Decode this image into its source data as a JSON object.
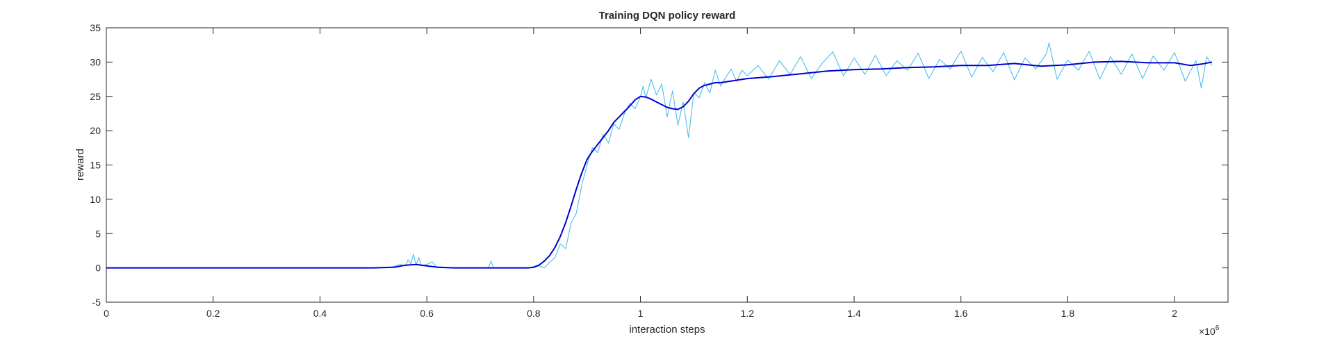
{
  "figure": {
    "title": "Training DQN policy reward",
    "xlabel": "interaction steps",
    "ylabel": "reward",
    "x_multiplier": {
      "base": "×10",
      "exponent": "6"
    }
  },
  "chart_data": {
    "type": "line",
    "title": "Training DQN policy reward",
    "xlabel": "interaction steps",
    "ylabel": "reward",
    "x_scale_label": "×10^6",
    "xlim": [
      0,
      2.1
    ],
    "ylim": [
      -5,
      35
    ],
    "xticks": [
      0,
      0.2,
      0.4,
      0.6,
      0.8,
      1,
      1.2,
      1.4,
      1.6,
      1.8,
      2
    ],
    "xtick_labels": [
      "0",
      "0.2",
      "0.4",
      "0.6",
      "0.8",
      "1",
      "1.2",
      "1.4",
      "1.6",
      "1.8",
      "2"
    ],
    "yticks": [
      -5,
      0,
      5,
      10,
      15,
      20,
      25,
      30,
      35
    ],
    "ytick_labels": [
      "-5",
      "0",
      "5",
      "10",
      "15",
      "20",
      "25",
      "30",
      "35"
    ],
    "grid": false,
    "legend": "none",
    "series": [
      {
        "color": "#4DBEEE",
        "style": "raw-noisy",
        "x": [
          0,
          0.1,
          0.2,
          0.3,
          0.4,
          0.5,
          0.53,
          0.55,
          0.56,
          0.565,
          0.57,
          0.575,
          0.58,
          0.585,
          0.59,
          0.6,
          0.61,
          0.62,
          0.65,
          0.7,
          0.715,
          0.72,
          0.725,
          0.75,
          0.78,
          0.8,
          0.81,
          0.82,
          0.83,
          0.84,
          0.85,
          0.86,
          0.87,
          0.88,
          0.89,
          0.9,
          0.91,
          0.92,
          0.93,
          0.94,
          0.95,
          0.96,
          0.97,
          0.98,
          0.99,
          1.0,
          1.005,
          1.01,
          1.02,
          1.03,
          1.04,
          1.05,
          1.06,
          1.07,
          1.08,
          1.09,
          1.1,
          1.11,
          1.12,
          1.13,
          1.14,
          1.15,
          1.16,
          1.17,
          1.18,
          1.19,
          1.2,
          1.22,
          1.24,
          1.26,
          1.28,
          1.3,
          1.32,
          1.34,
          1.36,
          1.38,
          1.4,
          1.42,
          1.44,
          1.46,
          1.48,
          1.5,
          1.52,
          1.54,
          1.56,
          1.58,
          1.6,
          1.62,
          1.64,
          1.66,
          1.68,
          1.7,
          1.72,
          1.74,
          1.76,
          1.765,
          1.78,
          1.8,
          1.82,
          1.84,
          1.86,
          1.88,
          1.9,
          1.92,
          1.94,
          1.96,
          1.98,
          2.0,
          2.02,
          2.04,
          2.05,
          2.06,
          2.07
        ],
        "values": [
          0,
          0,
          0,
          0,
          0,
          0,
          0,
          0.5,
          0.3,
          1.2,
          0.6,
          2.0,
          0.4,
          1.5,
          0.3,
          0.5,
          0.9,
          0,
          0,
          0,
          0,
          1.0,
          0,
          0,
          0,
          0,
          0.3,
          0,
          0.8,
          1.5,
          3.5,
          2.8,
          6.5,
          8.0,
          12.0,
          15.0,
          17.5,
          16.8,
          19.5,
          18.2,
          21.0,
          20.2,
          22.5,
          24.0,
          23.2,
          25.0,
          26.5,
          24.8,
          27.5,
          25.2,
          26.8,
          22.0,
          25.8,
          20.8,
          24.2,
          19.0,
          25.5,
          24.8,
          27.0,
          25.5,
          28.8,
          26.5,
          27.8,
          29.0,
          27.2,
          28.8,
          28.0,
          29.5,
          27.5,
          30.2,
          28.2,
          30.8,
          27.6,
          29.8,
          31.5,
          28.0,
          30.6,
          28.2,
          31.0,
          28.0,
          30.2,
          28.8,
          31.3,
          27.6,
          30.4,
          29.0,
          31.6,
          27.8,
          30.7,
          28.6,
          31.4,
          27.4,
          30.6,
          29.0,
          31.2,
          32.8,
          27.5,
          30.3,
          28.8,
          31.6,
          27.5,
          30.8,
          28.2,
          31.2,
          27.6,
          30.9,
          28.8,
          31.4,
          27.2,
          30.2,
          26.2,
          30.8,
          29.5
        ]
      },
      {
        "color": "#0000CD",
        "style": "smoothed",
        "x": [
          0,
          0.2,
          0.4,
          0.5,
          0.54,
          0.56,
          0.58,
          0.6,
          0.62,
          0.65,
          0.7,
          0.75,
          0.79,
          0.8,
          0.81,
          0.82,
          0.83,
          0.84,
          0.85,
          0.86,
          0.87,
          0.88,
          0.89,
          0.9,
          0.91,
          0.92,
          0.93,
          0.94,
          0.95,
          0.96,
          0.97,
          0.98,
          0.99,
          1.0,
          1.01,
          1.02,
          1.03,
          1.04,
          1.05,
          1.06,
          1.07,
          1.08,
          1.09,
          1.1,
          1.11,
          1.12,
          1.13,
          1.14,
          1.15,
          1.2,
          1.25,
          1.3,
          1.35,
          1.4,
          1.45,
          1.5,
          1.55,
          1.6,
          1.65,
          1.7,
          1.75,
          1.8,
          1.85,
          1.9,
          1.95,
          2.0,
          2.03,
          2.05,
          2.07
        ],
        "values": [
          0,
          0,
          0,
          0,
          0.1,
          0.4,
          0.5,
          0.3,
          0.1,
          0,
          0,
          0,
          0,
          0.1,
          0.4,
          1.0,
          1.8,
          3.0,
          4.6,
          6.6,
          9.0,
          11.5,
          13.8,
          15.8,
          17.0,
          18.0,
          19.0,
          20.0,
          21.2,
          22.0,
          22.8,
          23.6,
          24.5,
          25.0,
          24.9,
          24.6,
          24.2,
          23.8,
          23.4,
          23.2,
          23.1,
          23.5,
          24.3,
          25.4,
          26.2,
          26.6,
          26.8,
          27.0,
          27.0,
          27.6,
          27.9,
          28.3,
          28.7,
          28.9,
          29.0,
          29.2,
          29.3,
          29.5,
          29.5,
          29.8,
          29.4,
          29.6,
          30.0,
          30.1,
          29.9,
          29.9,
          29.5,
          29.7,
          30.0
        ]
      }
    ]
  }
}
